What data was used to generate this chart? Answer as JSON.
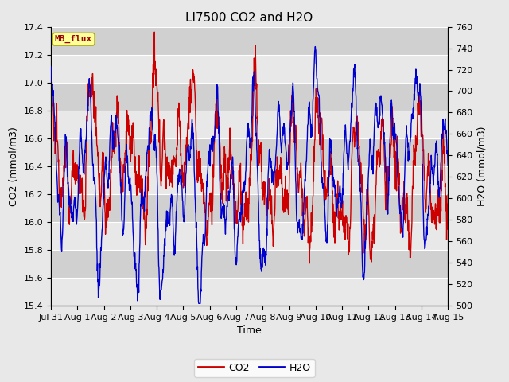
{
  "title": "LI7500 CO2 and H2O",
  "xlabel": "Time",
  "ylabel_left": "CO2 (mmol/m3)",
  "ylabel_right": "H2O (mmol/m3)",
  "co2_ylim": [
    15.4,
    17.4
  ],
  "h2o_ylim": [
    500,
    760
  ],
  "co2_yticks": [
    15.4,
    15.6,
    15.8,
    16.0,
    16.2,
    16.4,
    16.6,
    16.8,
    17.0,
    17.2,
    17.4
  ],
  "h2o_yticks": [
    500,
    520,
    540,
    560,
    580,
    600,
    620,
    640,
    660,
    680,
    700,
    720,
    740,
    760
  ],
  "xtick_labels": [
    "Jul 31",
    "Aug 1",
    "Aug 2",
    "Aug 3",
    "Aug 4",
    "Aug 5",
    "Aug 6",
    "Aug 7",
    "Aug 8",
    "Aug 9",
    "Aug 10",
    "Aug 11",
    "Aug 12",
    "Aug 13",
    "Aug 14",
    "Aug 15"
  ],
  "co2_color": "#cc0000",
  "h2o_color": "#0000cc",
  "fig_bg_color": "#e8e8e8",
  "plot_bg_color": "#d8d8d8",
  "band_color_light": "#e8e8e8",
  "band_color_dark": "#d0d0d0",
  "grid_color": "#ffffff",
  "legend_co2_label": "CO2",
  "legend_h2o_label": "H2O",
  "annotation_text": "MB_flux",
  "annotation_bg": "#ffff99",
  "annotation_border": "#aaaa00",
  "title_fontsize": 11,
  "axis_label_fontsize": 9,
  "tick_fontsize": 8,
  "legend_fontsize": 9,
  "line_width": 1.0,
  "n_points": 1500
}
